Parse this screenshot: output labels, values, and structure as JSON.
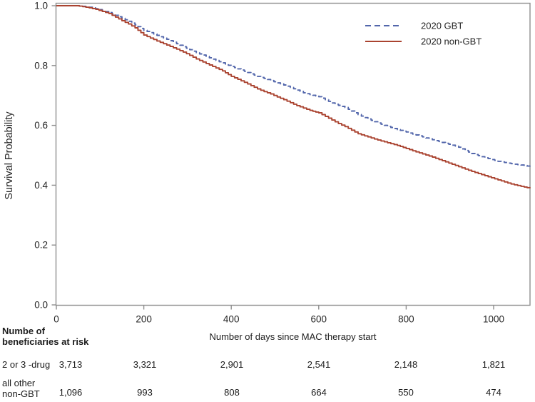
{
  "figure": {
    "background": "#ffffff",
    "frame_color": "#8f8f8f",
    "text_color": "#262626"
  },
  "chart_data": {
    "type": "line",
    "subtype": "kaplan-meier-step-curves",
    "title": "",
    "xlabel": "Number of days since MAC therapy start",
    "ylabel": "Survival Probability",
    "xlim": [
      0,
      1083
    ],
    "ylim": [
      0.0,
      1.0
    ],
    "x_ticks": [
      0,
      200,
      400,
      600,
      800,
      1000
    ],
    "y_ticks": [
      1.0,
      0.8,
      0.6,
      0.4,
      0.2,
      0.0
    ],
    "grid": false,
    "legend_position": "top-right-inside",
    "series": [
      {
        "name": "2020 GBT",
        "color": "#5266ab",
        "dash": "6 3.5",
        "points": [
          [
            0,
            1.0
          ],
          [
            45,
            1.0
          ],
          [
            60,
            0.998
          ],
          [
            75,
            0.995
          ],
          [
            90,
            0.99
          ],
          [
            105,
            0.984
          ],
          [
            120,
            0.977
          ],
          [
            135,
            0.968
          ],
          [
            150,
            0.958
          ],
          [
            165,
            0.948
          ],
          [
            180,
            0.936
          ],
          [
            200,
            0.918
          ],
          [
            215,
            0.91
          ],
          [
            230,
            0.901
          ],
          [
            245,
            0.892
          ],
          [
            260,
            0.883
          ],
          [
            275,
            0.873
          ],
          [
            290,
            0.863
          ],
          [
            305,
            0.853
          ],
          [
            320,
            0.843
          ],
          [
            335,
            0.835
          ],
          [
            350,
            0.826
          ],
          [
            365,
            0.817
          ],
          [
            380,
            0.809
          ],
          [
            400,
            0.797
          ],
          [
            415,
            0.789
          ],
          [
            430,
            0.781
          ],
          [
            445,
            0.772
          ],
          [
            460,
            0.764
          ],
          [
            475,
            0.757
          ],
          [
            490,
            0.75
          ],
          [
            505,
            0.742
          ],
          [
            520,
            0.735
          ],
          [
            535,
            0.727
          ],
          [
            550,
            0.718
          ],
          [
            565,
            0.709
          ],
          [
            580,
            0.703
          ],
          [
            600,
            0.696
          ],
          [
            615,
            0.686
          ],
          [
            630,
            0.675
          ],
          [
            645,
            0.667
          ],
          [
            660,
            0.66
          ],
          [
            675,
            0.648
          ],
          [
            690,
            0.636
          ],
          [
            705,
            0.626
          ],
          [
            720,
            0.617
          ],
          [
            735,
            0.608
          ],
          [
            750,
            0.6
          ],
          [
            765,
            0.593
          ],
          [
            780,
            0.586
          ],
          [
            800,
            0.578
          ],
          [
            815,
            0.571
          ],
          [
            830,
            0.565
          ],
          [
            845,
            0.558
          ],
          [
            860,
            0.552
          ],
          [
            875,
            0.546
          ],
          [
            890,
            0.54
          ],
          [
            905,
            0.534
          ],
          [
            920,
            0.527
          ],
          [
            935,
            0.516
          ],
          [
            950,
            0.506
          ],
          [
            965,
            0.499
          ],
          [
            980,
            0.492
          ],
          [
            995,
            0.486
          ],
          [
            1010,
            0.48
          ],
          [
            1025,
            0.476
          ],
          [
            1040,
            0.472
          ],
          [
            1055,
            0.469
          ],
          [
            1070,
            0.466
          ],
          [
            1083,
            0.462
          ]
        ]
      },
      {
        "name": "2020 non-GBT",
        "color": "#aa4330",
        "dash": null,
        "points": [
          [
            0,
            1.0
          ],
          [
            45,
            1.0
          ],
          [
            60,
            0.997
          ],
          [
            75,
            0.993
          ],
          [
            90,
            0.988
          ],
          [
            105,
            0.981
          ],
          [
            120,
            0.974
          ],
          [
            135,
            0.962
          ],
          [
            150,
            0.95
          ],
          [
            165,
            0.939
          ],
          [
            180,
            0.926
          ],
          [
            200,
            0.902
          ],
          [
            215,
            0.892
          ],
          [
            230,
            0.882
          ],
          [
            245,
            0.873
          ],
          [
            260,
            0.864
          ],
          [
            275,
            0.855
          ],
          [
            290,
            0.845
          ],
          [
            305,
            0.834
          ],
          [
            320,
            0.822
          ],
          [
            335,
            0.812
          ],
          [
            350,
            0.802
          ],
          [
            365,
            0.792
          ],
          [
            380,
            0.782
          ],
          [
            400,
            0.764
          ],
          [
            415,
            0.754
          ],
          [
            430,
            0.744
          ],
          [
            445,
            0.733
          ],
          [
            460,
            0.722
          ],
          [
            475,
            0.713
          ],
          [
            490,
            0.705
          ],
          [
            505,
            0.695
          ],
          [
            520,
            0.686
          ],
          [
            535,
            0.676
          ],
          [
            550,
            0.666
          ],
          [
            565,
            0.658
          ],
          [
            580,
            0.65
          ],
          [
            600,
            0.642
          ],
          [
            615,
            0.63
          ],
          [
            630,
            0.618
          ],
          [
            645,
            0.606
          ],
          [
            660,
            0.596
          ],
          [
            675,
            0.584
          ],
          [
            690,
            0.572
          ],
          [
            705,
            0.565
          ],
          [
            720,
            0.558
          ],
          [
            735,
            0.551
          ],
          [
            750,
            0.545
          ],
          [
            765,
            0.539
          ],
          [
            780,
            0.533
          ],
          [
            800,
            0.523
          ],
          [
            815,
            0.515
          ],
          [
            830,
            0.508
          ],
          [
            845,
            0.501
          ],
          [
            860,
            0.494
          ],
          [
            875,
            0.486
          ],
          [
            890,
            0.478
          ],
          [
            905,
            0.47
          ],
          [
            920,
            0.462
          ],
          [
            935,
            0.454
          ],
          [
            950,
            0.446
          ],
          [
            965,
            0.439
          ],
          [
            980,
            0.432
          ],
          [
            995,
            0.425
          ],
          [
            1010,
            0.418
          ],
          [
            1025,
            0.411
          ],
          [
            1040,
            0.404
          ],
          [
            1055,
            0.399
          ],
          [
            1070,
            0.394
          ],
          [
            1083,
            0.39
          ]
        ]
      }
    ]
  },
  "risk_table": {
    "header_lines": [
      "Numbe of",
      "beneficiaries at risk"
    ],
    "time_points": [
      0,
      200,
      400,
      600,
      800,
      1000
    ],
    "rows": [
      {
        "label_lines": [
          "2 or 3 -drug"
        ],
        "values": [
          "3,713",
          "3,321",
          "2,901",
          "2,541",
          "2,148",
          "1,821"
        ]
      },
      {
        "label_lines": [
          "all other",
          "non-GBT"
        ],
        "values": [
          "1,096",
          "993",
          "808",
          "664",
          "550",
          "474"
        ]
      }
    ]
  }
}
